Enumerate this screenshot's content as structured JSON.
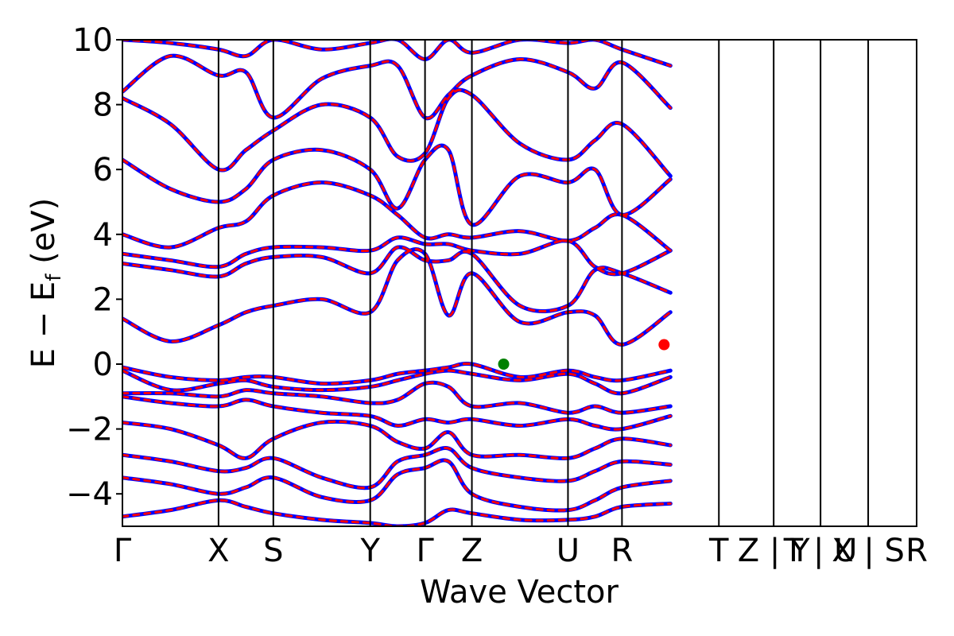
{
  "chart_data": {
    "type": "line",
    "xlabel": "Wave Vector",
    "ylabel": "E − E",
    "ylabel_sub": "f",
    "ylabel_unit": "(eV)",
    "ylim": [
      -5,
      10
    ],
    "yticks": [
      {
        "value": -4,
        "label": "−4"
      },
      {
        "value": -2,
        "label": "−2"
      },
      {
        "value": 0,
        "label": "0"
      },
      {
        "value": 2,
        "label": "2"
      },
      {
        "value": 4,
        "label": "4"
      },
      {
        "value": 6,
        "label": "6"
      },
      {
        "value": 8,
        "label": "8"
      },
      {
        "value": 10,
        "label": "10"
      }
    ],
    "xlim": [
      0,
      100
    ],
    "kpoints": [
      {
        "x": 0.0,
        "label": "Γ"
      },
      {
        "x": 12.1,
        "label": "X"
      },
      {
        "x": 19.0,
        "label": "S"
      },
      {
        "x": 31.2,
        "label": "Y"
      },
      {
        "x": 38.1,
        "label": "Γ"
      },
      {
        "x": 44.0,
        "label": "Z"
      },
      {
        "x": 56.1,
        "label": "U"
      },
      {
        "x": 62.9,
        "label": "R"
      },
      {
        "x": 75.1,
        "label": "T"
      },
      {
        "x": 82.0,
        "label": "Z | Y"
      },
      {
        "x": 87.9,
        "label": "T | U"
      },
      {
        "x": 93.9,
        "label": "X | S"
      },
      {
        "x": 100.0,
        "label": "R"
      }
    ],
    "series": [
      {
        "style": "solid",
        "color": "#0000ff",
        "width": 5
      },
      {
        "style": "dashed",
        "color": "#ff0000",
        "width": 3
      }
    ],
    "markers": [
      {
        "x": 48.0,
        "y": 0.0,
        "color": "#008000"
      },
      {
        "x": 68.2,
        "y": 0.6,
        "color": "#ff0000"
      }
    ],
    "band_edges": {
      "valence_maximum": 0.0,
      "conduction_minimum": 0.6
    },
    "bands": [
      [
        -4.7,
        -4.5,
        -4.2,
        -4.4,
        -4.6,
        -4.8,
        -4.9,
        -5.0,
        -4.9,
        -4.5,
        -4.6,
        -4.8,
        -4.8,
        -4.7,
        -4.4,
        -4.3
      ],
      [
        -3.5,
        -3.7,
        -4.0,
        -3.8,
        -3.5,
        -4.1,
        -4.2,
        -3.4,
        -3.2,
        -3.0,
        -4.0,
        -4.4,
        -4.5,
        -4.2,
        -3.8,
        -3.6
      ],
      [
        -2.8,
        -3.0,
        -3.3,
        -3.2,
        -2.9,
        -3.5,
        -3.8,
        -3.0,
        -2.8,
        -2.6,
        -3.2,
        -3.5,
        -3.6,
        -3.3,
        -3.0,
        -3.1
      ],
      [
        -1.8,
        -2.0,
        -2.5,
        -2.9,
        -2.3,
        -1.8,
        -1.9,
        -2.4,
        -2.6,
        -2.1,
        -2.8,
        -2.8,
        -2.9,
        -2.6,
        -2.3,
        -2.5
      ],
      [
        -1.0,
        -1.2,
        -1.3,
        -1.1,
        -1.3,
        -1.5,
        -1.6,
        -1.9,
        -1.7,
        -1.8,
        -1.7,
        -1.9,
        -1.7,
        -1.9,
        -2.0,
        -1.6
      ],
      [
        -0.9,
        -0.9,
        -1.0,
        -0.8,
        -0.9,
        -1.0,
        -1.2,
        -1.1,
        -0.6,
        -0.7,
        -1.3,
        -1.2,
        -1.5,
        -1.3,
        -1.5,
        -1.3
      ],
      [
        -0.2,
        -0.8,
        -0.6,
        -0.5,
        -0.7,
        -0.8,
        -0.7,
        -0.5,
        -0.3,
        -0.2,
        -0.3,
        -0.5,
        -0.3,
        -0.6,
        -0.9,
        -0.4
      ],
      [
        -0.1,
        -0.4,
        -0.5,
        -0.4,
        -0.4,
        -0.6,
        -0.5,
        -0.3,
        -0.2,
        -0.1,
        0.0,
        -0.4,
        -0.2,
        -0.4,
        -0.5,
        -0.2
      ],
      [
        1.4,
        0.7,
        1.2,
        1.6,
        1.8,
        2.0,
        1.6,
        3.2,
        3.4,
        1.5,
        2.8,
        1.3,
        1.6,
        1.5,
        0.6,
        1.6
      ],
      [
        3.1,
        2.9,
        2.7,
        3.1,
        3.3,
        3.3,
        2.8,
        3.6,
        3.2,
        3.2,
        3.4,
        1.8,
        1.8,
        2.9,
        2.8,
        2.2
      ],
      [
        3.4,
        3.2,
        3.0,
        3.4,
        3.6,
        3.6,
        3.5,
        3.9,
        3.7,
        3.7,
        3.5,
        3.4,
        3.8,
        3.0,
        2.8,
        3.5
      ],
      [
        4.0,
        3.6,
        4.2,
        4.4,
        5.2,
        5.6,
        5.2,
        4.6,
        3.9,
        4.0,
        3.9,
        4.1,
        3.8,
        4.2,
        4.6,
        3.5
      ],
      [
        6.3,
        5.4,
        5.0,
        5.4,
        6.3,
        6.6,
        6.0,
        4.8,
        6.3,
        6.6,
        4.3,
        5.8,
        5.6,
        6.0,
        4.6,
        5.7
      ],
      [
        8.2,
        7.4,
        6.0,
        6.6,
        7.2,
        8.0,
        7.6,
        6.4,
        6.5,
        8.2,
        8.3,
        6.8,
        6.3,
        6.9,
        7.4,
        5.8
      ],
      [
        8.4,
        9.5,
        8.9,
        9.0,
        7.6,
        8.8,
        9.2,
        9.2,
        7.6,
        8.3,
        8.9,
        9.4,
        9.0,
        8.5,
        9.3,
        7.9
      ],
      [
        10.0,
        9.9,
        9.7,
        9.5,
        10.0,
        9.7,
        9.9,
        10.0,
        9.4,
        10.0,
        9.6,
        10.0,
        9.9,
        10.0,
        9.7,
        9.2
      ]
    ]
  }
}
